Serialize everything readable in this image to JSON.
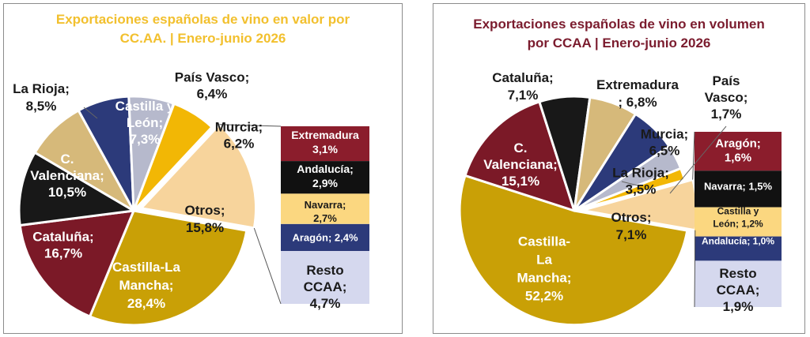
{
  "chart_data": [
    {
      "type": "pie",
      "title_lines": [
        "Exportaciones españolas de vino en valor por",
        "CC.AA. | Enero-junio 2026"
      ],
      "colors": {
        "title": "#f2c02e"
      },
      "slices": [
        {
          "label": "Castilla-La Mancha",
          "value": 28.4,
          "value_text": "28,4%",
          "label_lines": [
            "Castilla-La",
            "Mancha;",
            "28,4%"
          ],
          "color": "#c9a006",
          "text_color": "#ffffff"
        },
        {
          "label": "Cataluña",
          "value": 16.7,
          "value_text": "16,7%",
          "label_lines": [
            "Cataluña;",
            "16,7%"
          ],
          "color": "#7b1927",
          "text_color": "#ffffff"
        },
        {
          "label": "C. Valenciana",
          "value": 10.5,
          "value_text": "10,5%",
          "label_lines": [
            "C.",
            "Valenciana;",
            "10,5%"
          ],
          "color": "#181818",
          "text_color": "#ffffff"
        },
        {
          "label": "La Rioja",
          "value": 8.5,
          "value_text": "8,5%",
          "label_lines": [
            "La Rioja;",
            "8,5%"
          ],
          "color": "#d6b97a",
          "text_color": "#1a1a1a"
        },
        {
          "label": "Castilla y León",
          "value": 7.3,
          "value_text": "7,3%",
          "label_lines": [
            "Castilla y",
            "León;",
            "7,3%"
          ],
          "color": "#2c3a7a",
          "text_color": "#ffffff"
        },
        {
          "label": "País Vasco",
          "value": 6.4,
          "value_text": "6,4%",
          "label_lines": [
            "País Vasco;",
            "6,4%"
          ],
          "color": "#b6b9cc",
          "text_color": "#1a1a1a"
        },
        {
          "label": "Murcia",
          "value": 6.2,
          "value_text": "6,2%",
          "label_lines": [
            "Murcia;",
            "6,2%"
          ],
          "color": "#f2b705",
          "text_color": "#1a1a1a"
        },
        {
          "label": "Otros",
          "value": 15.8,
          "value_text": "15,8%",
          "label_lines": [
            "Otros;",
            "15,8%"
          ],
          "color": "#f7d49c",
          "text_color": "#1a1a1a"
        }
      ],
      "breakout": {
        "of": "Otros",
        "items": [
          {
            "label": "Extremadura",
            "value": 3.1,
            "value_text": "3,1%",
            "label_lines": [
              "Extremadura",
              "3,1%"
            ],
            "color": "#8b1d2c",
            "text_color": "#ffffff"
          },
          {
            "label": "Andalucía",
            "value": 2.9,
            "value_text": "2,9%",
            "label_lines": [
              "Andalucía;",
              "2,9%"
            ],
            "color": "#111111",
            "text_color": "#ffffff"
          },
          {
            "label": "Navarra",
            "value": 2.7,
            "value_text": "2,7%",
            "label_lines": [
              "Navarra;",
              "2,7%"
            ],
            "color": "#fbd780",
            "text_color": "#1a1a1a"
          },
          {
            "label": "Aragón",
            "value": 2.4,
            "value_text": "2,4%",
            "label_lines": [
              "Aragón; 2,4%"
            ],
            "color": "#2c3a7a",
            "text_color": "#ffffff"
          },
          {
            "label": "Resto CCAA",
            "value": 4.7,
            "value_text": "4,7%",
            "label_lines": [
              "Resto",
              "CCAA;",
              "4,7%"
            ],
            "color": "#d5d8ee",
            "text_color": "#1a1a1a"
          }
        ]
      }
    },
    {
      "type": "pie",
      "title_lines": [
        "Exportaciones españolas de vino en volumen",
        "por CCAA | Enero-junio 2026"
      ],
      "colors": {
        "title": "#7b1c2e"
      },
      "slices": [
        {
          "label": "Castilla-La Mancha",
          "value": 52.2,
          "value_text": "52,2%",
          "label_lines": [
            "Castilla-",
            "La",
            "Mancha;",
            "52,2%"
          ],
          "color": "#c9a006",
          "text_color": "#ffffff"
        },
        {
          "label": "C. Valenciana",
          "value": 15.1,
          "value_text": "15,1%",
          "label_lines": [
            "C.",
            "Valenciana;",
            "15,1%"
          ],
          "color": "#7b1927",
          "text_color": "#ffffff"
        },
        {
          "label": "Cataluña",
          "value": 7.1,
          "value_text": "7,1%",
          "label_lines": [
            "Cataluña;",
            "7,1%"
          ],
          "color": "#181818",
          "text_color": "#1a1a1a"
        },
        {
          "label": "Extremadura",
          "value": 6.8,
          "value_text": "6,8%",
          "label_lines": [
            "Extremadura",
            "; 6,8%"
          ],
          "color": "#d6b97a",
          "text_color": "#1a1a1a"
        },
        {
          "label": "Murcia",
          "value": 6.5,
          "value_text": "6,5%",
          "label_lines": [
            "Murcia;",
            "6,5%"
          ],
          "color": "#2c3a7a",
          "text_color": "#1a1a1a"
        },
        {
          "label": "La Rioja",
          "value": 3.5,
          "value_text": "3,5%",
          "label_lines": [
            "La Rioja;",
            "3,5%"
          ],
          "color": "#b6b9cc",
          "text_color": "#1a1a1a"
        },
        {
          "label": "País Vasco",
          "value": 1.7,
          "value_text": "1,7%",
          "label_lines": [
            "País",
            "Vasco;",
            "1,7%"
          ],
          "color": "#f2b705",
          "text_color": "#1a1a1a"
        },
        {
          "label": "Otros",
          "value": 7.1,
          "value_text": "7,1%",
          "label_lines": [
            "Otros;",
            "7,1%"
          ],
          "color": "#f7d49c",
          "text_color": "#1a1a1a"
        }
      ],
      "breakout": {
        "of": "Otros",
        "items": [
          {
            "label": "Aragón",
            "value": 1.6,
            "value_text": "1,6%",
            "label_lines": [
              "Aragón;",
              "1,6%"
            ],
            "color": "#8b1d2c",
            "text_color": "#ffffff"
          },
          {
            "label": "Navarra",
            "value": 1.5,
            "value_text": "1,5%",
            "label_lines": [
              "Navarra; 1,5%"
            ],
            "color": "#111111",
            "text_color": "#ffffff"
          },
          {
            "label": "Castilla y León",
            "value": 1.2,
            "value_text": "1,2%",
            "label_lines": [
              "Castilla y",
              "León; 1,2%"
            ],
            "color": "#fbd780",
            "text_color": "#1a1a1a"
          },
          {
            "label": "Andalucía",
            "value": 1.0,
            "value_text": "1,0%",
            "label_lines": [
              "Andalucía; 1,0%"
            ],
            "color": "#2c3a7a",
            "text_color": "#ffffff"
          },
          {
            "label": "Resto CCAA",
            "value": 1.9,
            "value_text": "1,9%",
            "label_lines": [
              "Resto",
              "CCAA;",
              "1,9%"
            ],
            "color": "#d5d8ee",
            "text_color": "#1a1a1a"
          }
        ]
      }
    }
  ]
}
